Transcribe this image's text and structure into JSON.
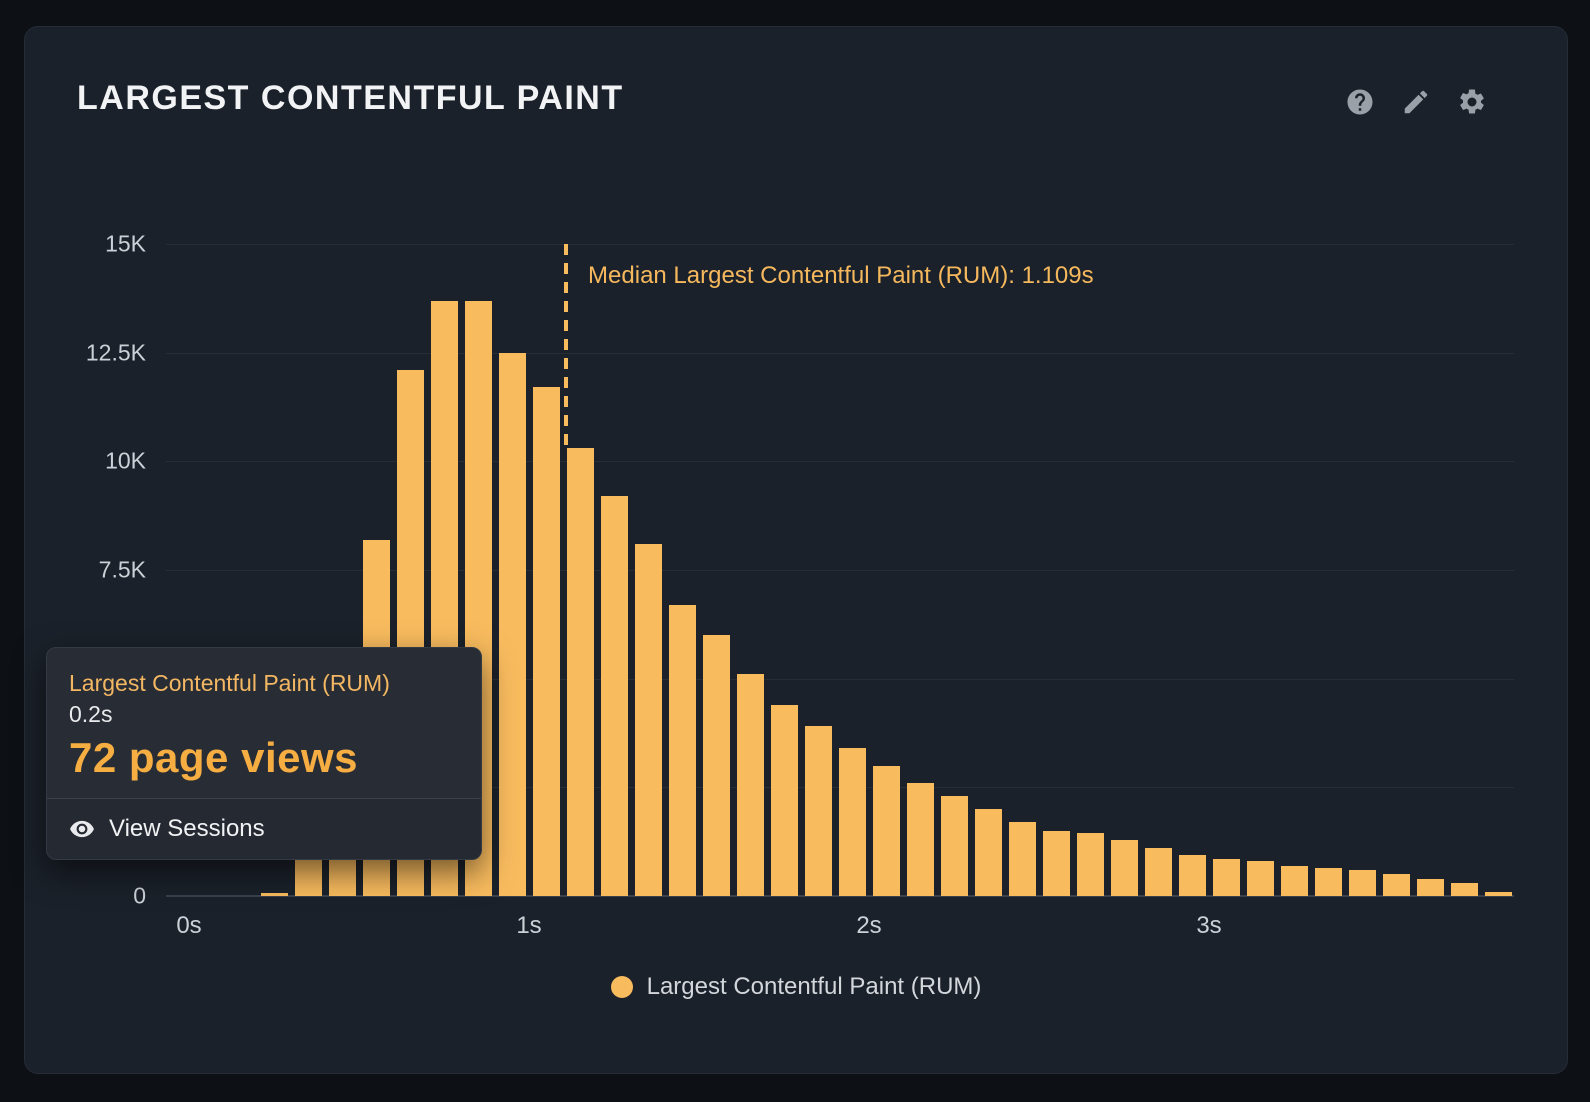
{
  "panel": {
    "title": "LARGEST CONTENTFUL PAINT",
    "header_icons": [
      "help-icon",
      "edit-icon",
      "settings-icon"
    ]
  },
  "chart_data": {
    "type": "bar",
    "series_name": "Largest Contentful Paint (RUM)",
    "x_unit": "seconds",
    "bin_width_s": 0.1,
    "x": [
      0.2,
      0.3,
      0.4,
      0.5,
      0.6,
      0.7,
      0.8,
      0.9,
      1.0,
      1.1,
      1.2,
      1.3,
      1.4,
      1.5,
      1.6,
      1.7,
      1.8,
      1.9,
      2.0,
      2.1,
      2.2,
      2.3,
      2.4,
      2.5,
      2.6,
      2.7,
      2.8,
      2.9,
      3.0,
      3.1,
      3.2,
      3.3,
      3.4,
      3.5,
      3.6,
      3.7,
      3.8
    ],
    "values": [
      72,
      900,
      3800,
      8200,
      12100,
      13700,
      13700,
      12500,
      11700,
      10300,
      9200,
      8100,
      6700,
      6000,
      5100,
      4400,
      3900,
      3400,
      3000,
      2600,
      2300,
      2000,
      1700,
      1500,
      1450,
      1300,
      1100,
      950,
      850,
      800,
      700,
      650,
      600,
      500,
      400,
      300,
      100
    ],
    "ylim": [
      0,
      15000
    ],
    "yticks": [
      {
        "label": "0",
        "value": 0
      },
      {
        "label": "7.5K",
        "value": 7500
      },
      {
        "label": "10K",
        "value": 10000
      },
      {
        "label": "12.5K",
        "value": 12500
      },
      {
        "label": "15K",
        "value": 15000
      }
    ],
    "xticks": [
      {
        "label": "0s",
        "value": 0
      },
      {
        "label": "1s",
        "value": 1
      },
      {
        "label": "2s",
        "value": 2
      },
      {
        "label": "3s",
        "value": 3
      }
    ],
    "grid": "horizontal",
    "legend_position": "bottom-center",
    "median_annotation": {
      "label": "Median Largest Contentful Paint (RUM): 1.109s",
      "value_s": 1.109
    },
    "bar_color": "#f8bb5e"
  },
  "tooltip": {
    "series": "Largest Contentful Paint (RUM)",
    "bucket": "0.2s",
    "value": "72 page views",
    "action": "View Sessions"
  },
  "legend": {
    "label": "Largest Contentful Paint (RUM)"
  },
  "colors": {
    "bar": "#f8bb5e",
    "accent_text": "#f6b85d",
    "panel_bg": "#1b212a",
    "page_bg": "#0d1015"
  }
}
